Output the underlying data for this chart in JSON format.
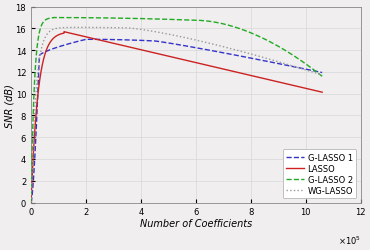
{
  "title": "",
  "xlabel": "Number of Coefficients",
  "ylabel": "SNR (dB)",
  "xlim": [
    0,
    1200000.0
  ],
  "ylim": [
    0,
    18
  ],
  "xticks": [
    0,
    200000.0,
    400000.0,
    600000.0,
    800000.0,
    1000000.0,
    1200000.0
  ],
  "xtick_labels": [
    "0",
    "2",
    "4",
    "6",
    "8",
    "10",
    "12"
  ],
  "yticks": [
    0,
    2,
    4,
    6,
    8,
    10,
    12,
    14,
    16,
    18
  ],
  "ytick_labels": [
    "0",
    "2",
    "4",
    "6",
    "8",
    "10",
    "12",
    "14",
    "16",
    "18"
  ],
  "fig_bg": "#f0eeee",
  "ax_bg": "#f0eeee",
  "grid_color": "#d8d8d8",
  "lines": {
    "glasso1": {
      "color": "#3333cc",
      "linestyle": "--",
      "label": "G-LASSO 1",
      "lw": 1.0
    },
    "lasso": {
      "color": "#cc2222",
      "linestyle": "-",
      "label": "LASSO",
      "lw": 1.0
    },
    "glasso2": {
      "color": "#22aa22",
      "linestyle": "--",
      "label": "G-LASSO 2",
      "lw": 1.0
    },
    "wglasso": {
      "color": "#999999",
      "linestyle": ":",
      "label": "WG-LASSO",
      "lw": 1.0
    }
  },
  "legend_loc": "lower right",
  "legend_fontsize": 6,
  "tick_fontsize": 6,
  "label_fontsize": 7
}
